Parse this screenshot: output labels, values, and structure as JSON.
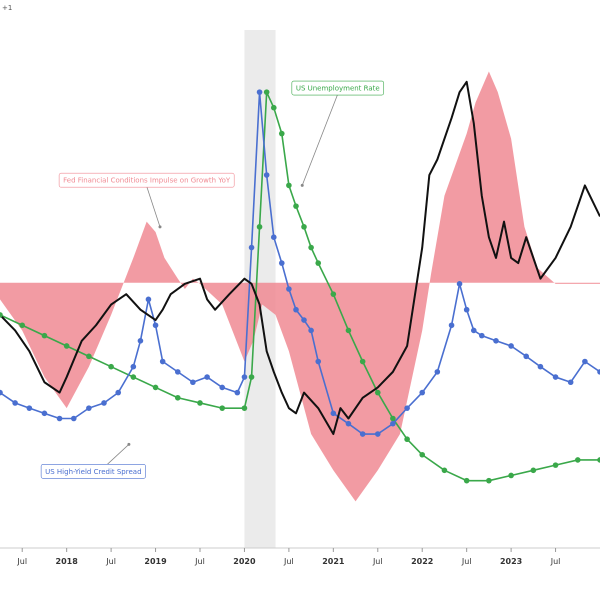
{
  "corner_mark": "+1",
  "chart_data": {
    "type": "line",
    "title": "",
    "xlabel": "",
    "ylabel": "",
    "x_range": [
      2017.25,
      2024.0
    ],
    "y_range": [
      0,
      1
    ],
    "grid": false,
    "legend": "annotations",
    "recession_band": [
      2020.0,
      2020.35
    ],
    "baseline": 0.512,
    "x_ticks": [
      {
        "x": 2017.5,
        "label": "Jul",
        "major": false
      },
      {
        "x": 2018.0,
        "label": "2018",
        "major": true
      },
      {
        "x": 2018.5,
        "label": "Jul",
        "major": false
      },
      {
        "x": 2019.0,
        "label": "2019",
        "major": true
      },
      {
        "x": 2019.5,
        "label": "Jul",
        "major": false
      },
      {
        "x": 2020.0,
        "label": "2020",
        "major": true
      },
      {
        "x": 2020.5,
        "label": "Jul",
        "major": false
      },
      {
        "x": 2021.0,
        "label": "2021",
        "major": true
      },
      {
        "x": 2021.5,
        "label": "Jul",
        "major": false
      },
      {
        "x": 2022.0,
        "label": "2022",
        "major": true
      },
      {
        "x": 2022.5,
        "label": "Jul",
        "major": false
      },
      {
        "x": 2023.0,
        "label": "2023",
        "major": true
      },
      {
        "x": 2023.5,
        "label": "Jul",
        "major": false
      }
    ],
    "annotations": [
      {
        "series": "fci",
        "label": "Fed Financial Conditions Impulse on Growth YoY",
        "text_x": 2018.9,
        "text_y": 0.71,
        "arrow_x": 2019.05,
        "arrow_y": 0.62
      },
      {
        "series": "unemp",
        "label": "US Unemployment Rate",
        "text_x": 2021.05,
        "text_y": 0.888,
        "arrow_x": 2020.65,
        "arrow_y": 0.7
      },
      {
        "series": "hy",
        "label": "US High-Yield Credit Spread",
        "text_x": 2018.3,
        "text_y": 0.148,
        "arrow_x": 2018.7,
        "arrow_y": 0.2
      }
    ],
    "series": [
      {
        "id": "fci",
        "name": "Fed Financial Conditions Impulse on Growth YoY",
        "style": "area",
        "color": "#f08a93",
        "x": [
          2017.25,
          2017.5,
          2017.75,
          2018.0,
          2018.25,
          2018.5,
          2018.75,
          2018.9,
          2019.0,
          2019.1,
          2019.25,
          2019.33,
          2019.42,
          2019.5,
          2019.75,
          2020.0,
          2020.1,
          2020.2,
          2020.35,
          2020.5,
          2020.75,
          2021.0,
          2021.25,
          2021.5,
          2021.75,
          2022.0,
          2022.1,
          2022.25,
          2022.5,
          2022.6,
          2022.75,
          2022.85,
          2023.0,
          2023.15,
          2023.3,
          2023.5,
          2023.75,
          2024.0
        ],
        "y": [
          0.48,
          0.42,
          0.33,
          0.27,
          0.35,
          0.45,
          0.56,
          0.63,
          0.61,
          0.56,
          0.52,
          0.5,
          0.52,
          0.51,
          0.47,
          0.36,
          0.4,
          0.47,
          0.45,
          0.38,
          0.22,
          0.15,
          0.09,
          0.15,
          0.22,
          0.42,
          0.53,
          0.68,
          0.8,
          0.86,
          0.92,
          0.88,
          0.79,
          0.62,
          0.54,
          0.51,
          0.51,
          0.51
        ]
      },
      {
        "id": "unemp",
        "name": "US Unemployment Rate",
        "style": "line-markers",
        "color": "#3aa84a",
        "x": [
          2017.25,
          2017.5,
          2017.75,
          2018.0,
          2018.25,
          2018.5,
          2018.75,
          2019.0,
          2019.25,
          2019.5,
          2019.75,
          2020.0,
          2020.08,
          2020.17,
          2020.25,
          2020.33,
          2020.42,
          2020.5,
          2020.58,
          2020.67,
          2020.75,
          2020.83,
          2021.0,
          2021.17,
          2021.33,
          2021.5,
          2021.67,
          2021.83,
          2022.0,
          2022.25,
          2022.5,
          2022.75,
          2023.0,
          2023.25,
          2023.5,
          2023.75,
          2024.0
        ],
        "y": [
          0.45,
          0.43,
          0.41,
          0.39,
          0.37,
          0.35,
          0.33,
          0.31,
          0.29,
          0.28,
          0.27,
          0.27,
          0.33,
          0.62,
          0.88,
          0.85,
          0.8,
          0.7,
          0.66,
          0.62,
          0.58,
          0.55,
          0.49,
          0.42,
          0.36,
          0.3,
          0.25,
          0.21,
          0.18,
          0.15,
          0.13,
          0.13,
          0.14,
          0.15,
          0.16,
          0.17,
          0.17
        ]
      },
      {
        "id": "hy",
        "name": "US High-Yield Credit Spread",
        "style": "line-markers",
        "color": "#4a6fd0",
        "x": [
          2017.25,
          2017.42,
          2017.58,
          2017.75,
          2017.92,
          2018.08,
          2018.25,
          2018.42,
          2018.58,
          2018.75,
          2018.83,
          2018.92,
          2019.0,
          2019.08,
          2019.25,
          2019.42,
          2019.58,
          2019.75,
          2019.92,
          2020.0,
          2020.08,
          2020.17,
          2020.25,
          2020.33,
          2020.42,
          2020.5,
          2020.58,
          2020.67,
          2020.75,
          2020.83,
          2021.0,
          2021.17,
          2021.33,
          2021.5,
          2021.67,
          2021.83,
          2022.0,
          2022.17,
          2022.33,
          2022.42,
          2022.5,
          2022.58,
          2022.67,
          2022.83,
          2023.0,
          2023.17,
          2023.33,
          2023.5,
          2023.67,
          2023.83,
          2024.0
        ],
        "y": [
          0.3,
          0.28,
          0.27,
          0.26,
          0.25,
          0.25,
          0.27,
          0.28,
          0.3,
          0.35,
          0.4,
          0.48,
          0.43,
          0.36,
          0.34,
          0.32,
          0.33,
          0.31,
          0.3,
          0.33,
          0.58,
          0.88,
          0.72,
          0.6,
          0.55,
          0.5,
          0.46,
          0.44,
          0.42,
          0.36,
          0.26,
          0.24,
          0.22,
          0.22,
          0.24,
          0.27,
          0.3,
          0.34,
          0.43,
          0.51,
          0.46,
          0.42,
          0.41,
          0.4,
          0.39,
          0.37,
          0.35,
          0.33,
          0.32,
          0.36,
          0.34
        ]
      },
      {
        "id": "macro",
        "name": "",
        "style": "line",
        "color": "#111111",
        "x": [
          2017.25,
          2017.42,
          2017.58,
          2017.75,
          2017.92,
          2018.0,
          2018.17,
          2018.33,
          2018.5,
          2018.67,
          2018.83,
          2019.0,
          2019.08,
          2019.17,
          2019.33,
          2019.5,
          2019.58,
          2019.67,
          2019.83,
          2020.0,
          2020.08,
          2020.17,
          2020.25,
          2020.33,
          2020.42,
          2020.5,
          2020.58,
          2020.67,
          2020.83,
          2021.0,
          2021.08,
          2021.17,
          2021.33,
          2021.5,
          2021.67,
          2021.83,
          2022.0,
          2022.08,
          2022.17,
          2022.33,
          2022.42,
          2022.5,
          2022.58,
          2022.67,
          2022.75,
          2022.83,
          2022.92,
          2023.0,
          2023.08,
          2023.17,
          2023.25,
          2023.33,
          2023.5,
          2023.67,
          2023.83,
          2024.0
        ],
        "y": [
          0.45,
          0.42,
          0.38,
          0.32,
          0.3,
          0.33,
          0.4,
          0.43,
          0.47,
          0.49,
          0.46,
          0.44,
          0.46,
          0.49,
          0.51,
          0.52,
          0.48,
          0.46,
          0.49,
          0.52,
          0.51,
          0.47,
          0.38,
          0.34,
          0.3,
          0.27,
          0.26,
          0.3,
          0.27,
          0.22,
          0.27,
          0.25,
          0.29,
          0.31,
          0.34,
          0.39,
          0.58,
          0.72,
          0.75,
          0.83,
          0.88,
          0.9,
          0.82,
          0.68,
          0.6,
          0.56,
          0.63,
          0.56,
          0.55,
          0.6,
          0.56,
          0.52,
          0.56,
          0.62,
          0.7,
          0.64
        ]
      }
    ]
  }
}
